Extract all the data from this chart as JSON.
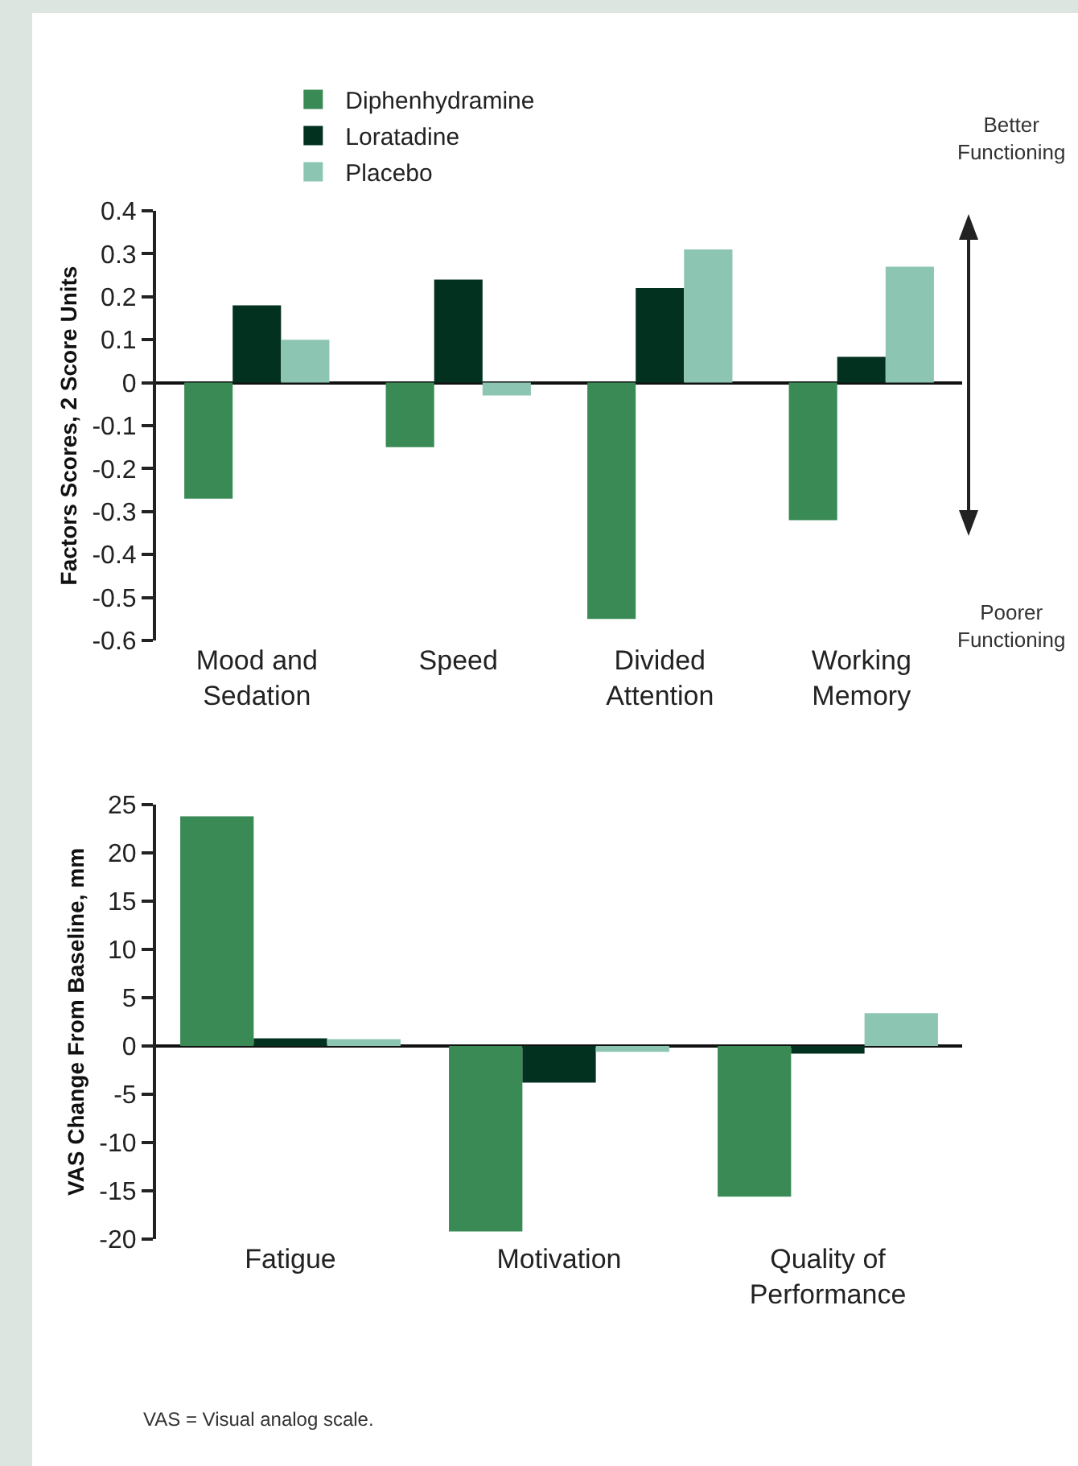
{
  "chart_data": [
    {
      "type": "bar",
      "ylabel": "Factors Scores, 2 Score Units",
      "categories": [
        "Mood and\nSedation",
        "Speed",
        "Divided\nAttention",
        "Working\nMemory"
      ],
      "series": [
        {
          "name": "Diphenhydramine",
          "color": "#3a8a55",
          "values": [
            -0.27,
            -0.15,
            -0.55,
            -0.32
          ]
        },
        {
          "name": "Loratadine",
          "color": "#02311f",
          "values": [
            0.18,
            0.24,
            0.22,
            0.06
          ]
        },
        {
          "name": "Placebo",
          "color": "#8cc6b2",
          "values": [
            0.1,
            -0.03,
            0.31,
            0.27
          ]
        }
      ],
      "ylim": [
        -0.6,
        0.4
      ],
      "yticks": [
        -0.6,
        -0.5,
        -0.4,
        -0.3,
        -0.2,
        -0.1,
        0,
        0.1,
        0.2,
        0.3,
        0.4
      ],
      "legend": "top left",
      "annotations": [
        "Better\nFunctioning",
        "Poorer\nFunctioning"
      ]
    },
    {
      "type": "bar",
      "ylabel": "VAS Change From Baseline, mm",
      "categories": [
        "Fatigue",
        "Motivation",
        "Quality of\nPerformance"
      ],
      "series": [
        {
          "color": "#3a8a55",
          "values": [
            23.8,
            -19.2,
            -15.6
          ]
        },
        {
          "color": "#02311f",
          "values": [
            0.8,
            -3.8,
            -0.8
          ]
        },
        {
          "color": "#8cc6b2",
          "values": [
            0.7,
            -0.6,
            3.4
          ]
        }
      ],
      "ylim": [
        -20,
        25
      ],
      "yticks": [
        -20,
        -15,
        -10,
        -5,
        0,
        5,
        10,
        15,
        20,
        25
      ],
      "legend": false,
      "annotations": [
        "VAS = Visual analog scale."
      ]
    }
  ]
}
